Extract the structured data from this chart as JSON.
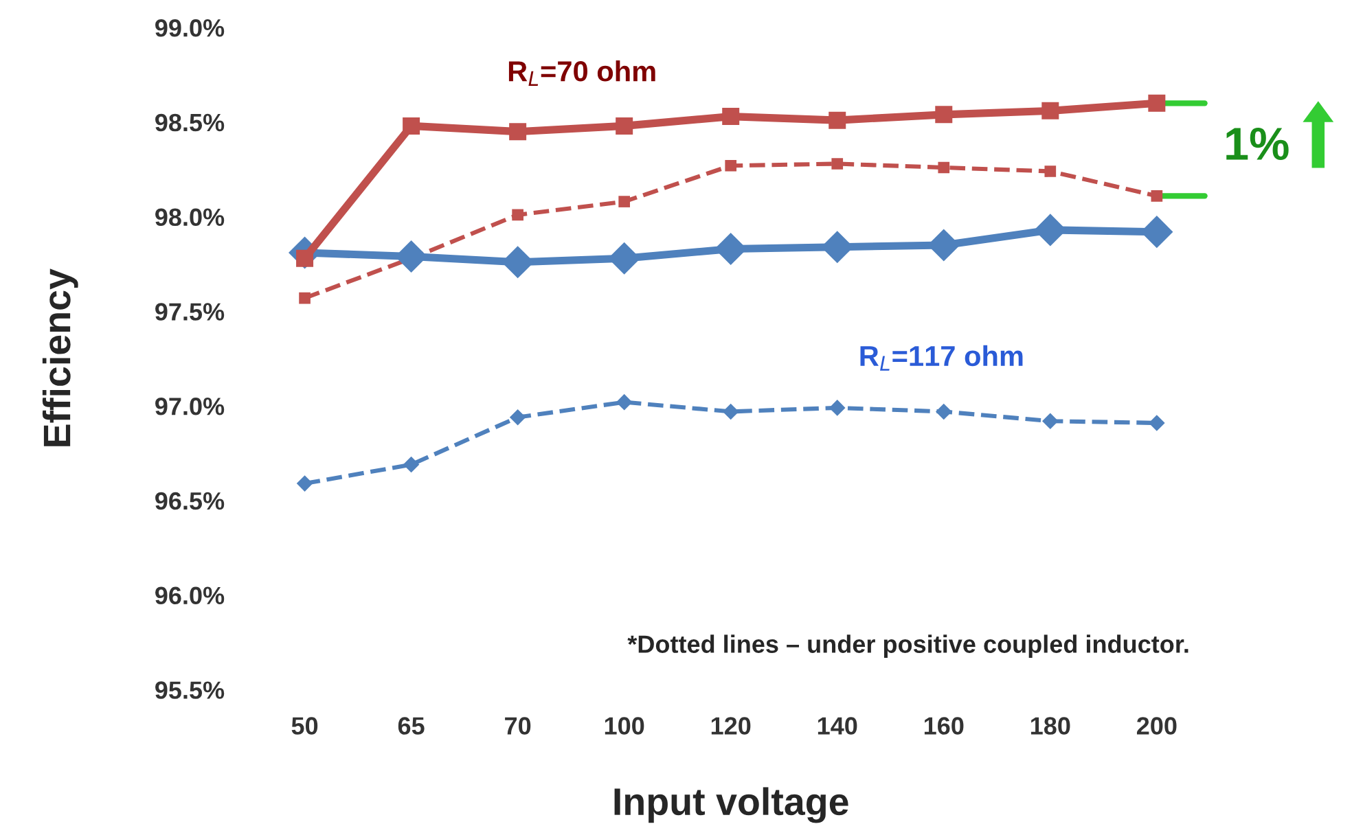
{
  "chart_data": {
    "type": "line",
    "xlabel": "Input voltage",
    "ylabel": "Efficiency",
    "categories": [
      "50",
      "65",
      "70",
      "100",
      "120",
      "140",
      "160",
      "180",
      "200"
    ],
    "series": [
      {
        "name": "R$_{L}$=70 ohm",
        "color": "#c0504d",
        "marker": "square",
        "line_style": "solid",
        "values": [
          97.78,
          98.48,
          98.45,
          98.48,
          98.53,
          98.51,
          98.54,
          98.56,
          98.6
        ]
      },
      {
        "color": "#c0504d",
        "marker": "square",
        "line_style": "dashed",
        "values": [
          97.57,
          97.78,
          98.01,
          98.08,
          98.27,
          98.28,
          98.26,
          98.24,
          98.11
        ]
      },
      {
        "name": "R$_{L}$=117 ohm",
        "color": "#4f81bd",
        "marker": "diamond",
        "line_style": "solid",
        "values": [
          97.81,
          97.79,
          97.76,
          97.78,
          97.83,
          97.84,
          97.85,
          97.93,
          97.92
        ]
      },
      {
        "color": "#4f81bd",
        "marker": "diamond",
        "line_style": "dashed",
        "values": [
          96.59,
          96.69,
          96.94,
          97.02,
          96.97,
          96.99,
          96.97,
          96.92,
          96.91
        ]
      }
    ],
    "ylim": [
      95.5,
      99.0
    ],
    "yticks": [
      {
        "value": 95.5,
        "label": "95.5%"
      },
      {
        "value": 96.0,
        "label": "96.0%"
      },
      {
        "value": 96.5,
        "label": "96.5%"
      },
      {
        "value": 97.0,
        "label": "97.0%"
      },
      {
        "value": 97.5,
        "label": "97.5%"
      },
      {
        "value": 98.0,
        "label": "98.0%"
      },
      {
        "value": 98.5,
        "label": "98.5%"
      },
      {
        "value": 99.0,
        "label": "99.0%"
      }
    ],
    "grid": false,
    "annotations": [
      "1%",
      "*Dotted lines – under positive coupled inductor."
    ]
  }
}
